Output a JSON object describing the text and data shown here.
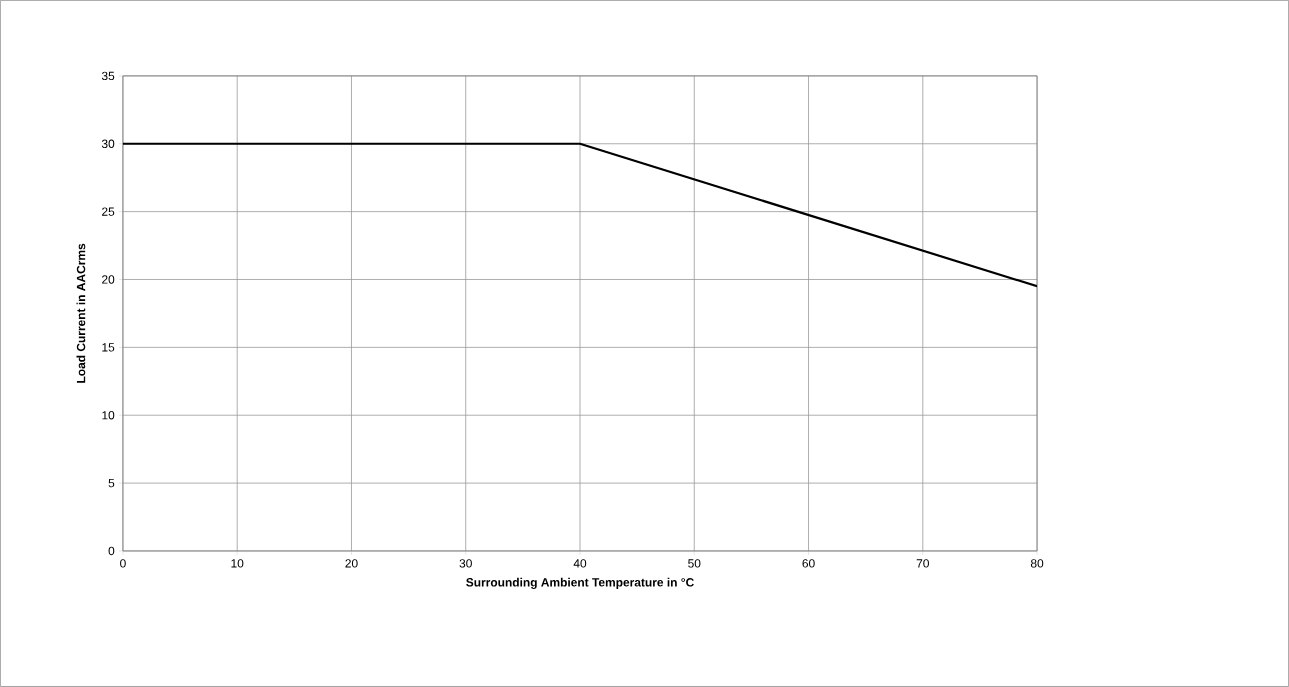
{
  "chart_data": {
    "type": "line",
    "xlabel": "Surrounding Ambient Temperature in °C",
    "ylabel": "Load Current in AACrms",
    "x": [
      0,
      40,
      80
    ],
    "series": [
      {
        "color": "#000000",
        "values": [
          30,
          30,
          19.5
        ]
      }
    ],
    "xlim": [
      0,
      80
    ],
    "xticks": [
      0,
      10,
      20,
      30,
      40,
      50,
      60,
      70,
      80
    ],
    "ylim": [
      0,
      35
    ],
    "yticks": [
      0,
      5,
      10,
      15,
      20,
      25,
      30,
      35
    ],
    "grid": true,
    "marker": "none",
    "line_style": "solid"
  }
}
